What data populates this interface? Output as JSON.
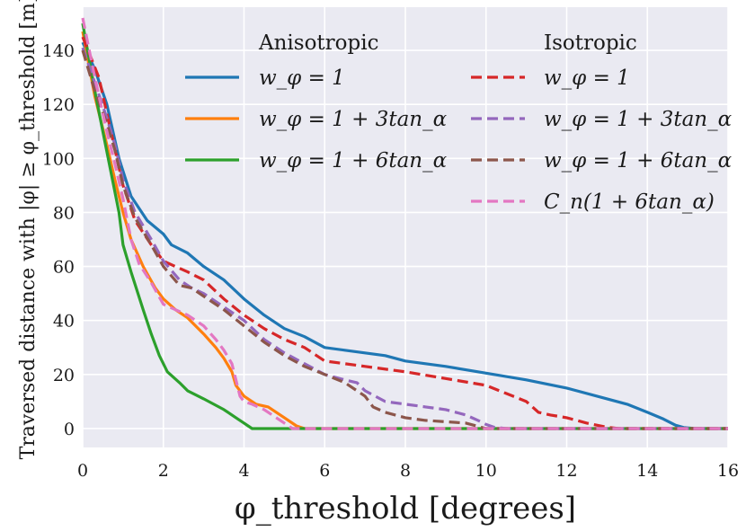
{
  "chart_data": {
    "type": "line",
    "xlabel": "φ_threshold [degrees]",
    "ylabel": "Traversed distance with |φ| ≥ φ_threshold [m]",
    "xlim": [
      0,
      16
    ],
    "ylim": [
      -7,
      156
    ],
    "xticks": [
      0,
      2,
      4,
      6,
      8,
      10,
      12,
      14,
      16
    ],
    "yticks": [
      0,
      20,
      40,
      60,
      80,
      100,
      120,
      140
    ],
    "grid": true,
    "legend_groups": [
      {
        "title": "Anisotropic",
        "placement": "top-center"
      },
      {
        "title": "Isotropic",
        "placement": "top-right"
      }
    ],
    "series": [
      {
        "name": "w_φ = 1",
        "group": "Anisotropic",
        "color": "#1f77b4",
        "dash": "solid",
        "x": [
          0,
          0.3,
          0.6,
          0.9,
          1.2,
          1.6,
          2.0,
          2.2,
          2.6,
          3.0,
          3.5,
          4.0,
          4.5,
          5.0,
          5.5,
          6.0,
          6.5,
          7.0,
          7.5,
          8.0,
          9.0,
          10.0,
          11.0,
          12.0,
          13.0,
          13.5,
          14.0,
          14.4,
          14.7,
          14.9,
          15.2,
          15.6,
          16.0
        ],
        "y": [
          143,
          133,
          120,
          100,
          86,
          77,
          72,
          68,
          65,
          60,
          55,
          48,
          42,
          37,
          34,
          30,
          29,
          28,
          27,
          25,
          23,
          20.5,
          18,
          15,
          11,
          9,
          6,
          3.5,
          1.2,
          0.4,
          0,
          0,
          0
        ]
      },
      {
        "name": "w_φ = 1 + 3tan_α",
        "group": "Anisotropic",
        "color": "#ff7f0e",
        "dash": "solid",
        "x": [
          0,
          0.3,
          0.6,
          0.8,
          1.0,
          1.2,
          1.5,
          1.8,
          2.0,
          2.3,
          2.6,
          3.0,
          3.3,
          3.5,
          3.7,
          3.8,
          4.0,
          4.3,
          4.6,
          5.0,
          5.3,
          5.5,
          6.0,
          16.0
        ],
        "y": [
          147,
          123,
          105,
          92,
          80,
          70,
          60,
          52,
          48,
          44,
          41,
          35,
          30,
          26,
          21,
          16,
          12,
          9,
          8,
          4,
          1,
          0,
          0,
          0
        ]
      },
      {
        "name": "w_φ = 1 + 6tan_α",
        "group": "Anisotropic",
        "color": "#2ca02c",
        "dash": "solid",
        "x": [
          0,
          0.3,
          0.5,
          0.7,
          0.9,
          1.0,
          1.2,
          1.5,
          1.7,
          1.9,
          2.1,
          2.4,
          2.6,
          3.0,
          3.5,
          3.8,
          4.0,
          4.1,
          4.2,
          4.5,
          5.0,
          16.0
        ],
        "y": [
          150,
          125,
          110,
          95,
          80,
          68,
          58,
          44,
          35,
          27,
          21,
          17,
          14,
          11,
          7,
          4,
          2,
          1,
          0,
          0,
          0,
          0
        ]
      },
      {
        "name": "w_φ = 1",
        "group": "Isotropic",
        "color": "#d62728",
        "dash": "dashed",
        "x": [
          0,
          0.4,
          0.7,
          1.0,
          1.3,
          1.7,
          2.0,
          2.3,
          2.6,
          3.0,
          3.5,
          4.0,
          4.5,
          5.0,
          5.5,
          6.0,
          7.0,
          8.0,
          9.0,
          10.0,
          10.5,
          11.0,
          11.3,
          11.6,
          12.0,
          12.5,
          13.0,
          13.3,
          13.8,
          16.0
        ],
        "y": [
          145,
          130,
          110,
          90,
          77,
          68,
          62,
          60,
          58,
          55,
          48,
          42,
          37,
          33,
          30,
          25,
          23,
          21,
          18.5,
          16,
          13,
          10,
          6,
          5,
          4,
          2,
          0.5,
          0,
          0,
          0
        ]
      },
      {
        "name": "w_φ = 1 + 3tan_α",
        "group": "Isotropic",
        "color": "#9467bd",
        "dash": "dashed",
        "x": [
          0,
          0.3,
          0.6,
          0.8,
          1.0,
          1.3,
          1.7,
          2.0,
          2.4,
          2.7,
          3.0,
          3.5,
          4.0,
          4.5,
          5.0,
          5.5,
          6.0,
          6.5,
          6.8,
          7.0,
          7.5,
          8.0,
          8.5,
          9.0,
          9.5,
          9.8,
          10.0,
          10.2,
          10.5,
          16.0
        ],
        "y": [
          141,
          128,
          115,
          105,
          92,
          80,
          70,
          62,
          55,
          52,
          50,
          45,
          40,
          33,
          28,
          24,
          20,
          18,
          17,
          14,
          10,
          9,
          8,
          7,
          5,
          3,
          1.5,
          0.5,
          0,
          0
        ]
      },
      {
        "name": "w_φ = 1 + 6tan_α",
        "group": "Isotropic",
        "color": "#8c564b",
        "dash": "dashed",
        "x": [
          0,
          0.3,
          0.6,
          0.8,
          1.0,
          1.3,
          1.7,
          2.0,
          2.4,
          2.7,
          3.0,
          3.5,
          4.0,
          4.5,
          5.0,
          5.5,
          6.0,
          6.5,
          7.0,
          7.2,
          7.5,
          8.0,
          8.5,
          9.0,
          9.5,
          10.0,
          16.0
        ],
        "y": [
          140,
          125,
          113,
          103,
          90,
          78,
          68,
          60,
          53,
          52,
          49,
          44,
          38,
          32,
          27,
          23,
          20,
          17,
          12,
          8,
          6,
          4,
          3,
          2.5,
          2,
          0,
          0
        ]
      },
      {
        "name": "C_n(1 + 6tan_α)",
        "group": "Isotropic",
        "color": "#e377c2",
        "dash": "dashed",
        "x": [
          0,
          0.3,
          0.6,
          0.8,
          1.0,
          1.2,
          1.4,
          1.7,
          2.0,
          2.3,
          2.6,
          3.0,
          3.3,
          3.5,
          3.7,
          3.8,
          3.9,
          4.0,
          4.2,
          4.5,
          4.8,
          5.0,
          5.2,
          16.0
        ],
        "y": [
          152,
          130,
          110,
          98,
          85,
          70,
          61,
          54,
          46,
          44,
          42,
          38,
          33,
          29,
          24,
          18,
          12,
          10,
          9,
          7,
          4,
          2,
          0,
          0
        ]
      }
    ]
  }
}
